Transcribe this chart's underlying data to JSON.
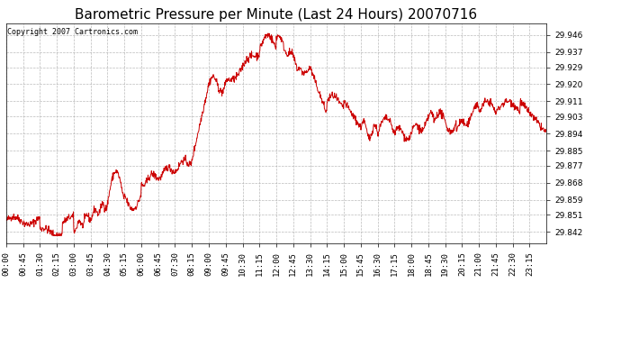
{
  "title": "Barometric Pressure per Minute (Last 24 Hours) 20070716",
  "copyright_text": "Copyright 2007 Cartronics.com",
  "line_color": "#cc0000",
  "background_color": "#ffffff",
  "plot_bg_color": "#ffffff",
  "grid_color": "#aaaaaa",
  "yticks": [
    29.842,
    29.851,
    29.859,
    29.868,
    29.877,
    29.885,
    29.894,
    29.903,
    29.911,
    29.92,
    29.929,
    29.937,
    29.946
  ],
  "ylim": [
    29.836,
    29.952
  ],
  "xtick_labels": [
    "00:00",
    "00:45",
    "01:30",
    "02:15",
    "03:00",
    "03:45",
    "04:30",
    "05:15",
    "06:00",
    "06:45",
    "07:30",
    "08:15",
    "09:00",
    "09:45",
    "10:30",
    "11:15",
    "12:00",
    "12:45",
    "13:30",
    "14:15",
    "15:00",
    "15:45",
    "16:30",
    "17:15",
    "18:00",
    "18:45",
    "19:30",
    "20:15",
    "21:00",
    "21:45",
    "22:30",
    "23:15"
  ],
  "title_fontsize": 11,
  "tick_fontsize": 6.5,
  "copyright_fontsize": 6.0
}
